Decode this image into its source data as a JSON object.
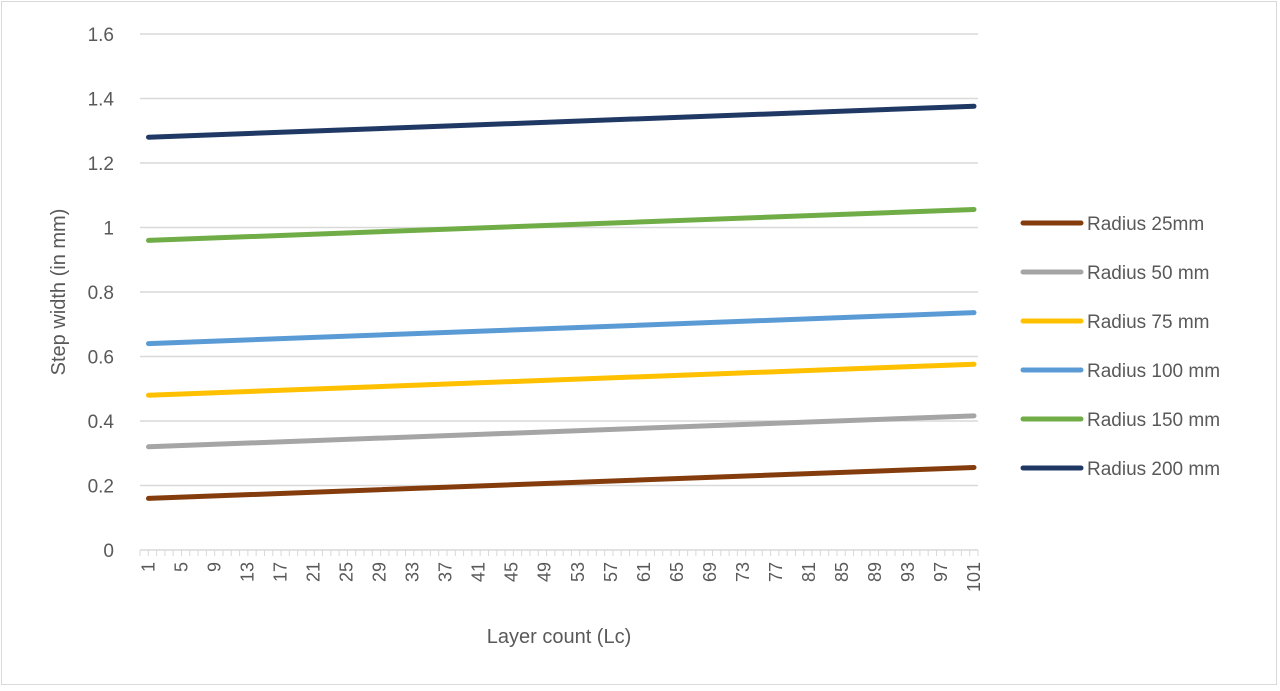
{
  "chart_data": {
    "type": "line",
    "title": "",
    "xlabel": "Layer count (Lc)",
    "ylabel": "Step width  (in mm)",
    "ylim": [
      0,
      1.6
    ],
    "yticks": [
      "0",
      "0.2",
      "0.4",
      "0.6",
      "0.8",
      "1",
      "1.2",
      "1.4",
      "1.6"
    ],
    "xlim": [
      1,
      101
    ],
    "xticks": [
      "1",
      "5",
      "9",
      "13",
      "17",
      "21",
      "25",
      "29",
      "33",
      "37",
      "41",
      "45",
      "49",
      "53",
      "57",
      "61",
      "65",
      "69",
      "73",
      "77",
      "81",
      "85",
      "89",
      "93",
      "97",
      "101"
    ],
    "grid": true,
    "legend_position": "right",
    "series": [
      {
        "name": "Radius 25mm",
        "color": "#843c0c",
        "start": 0.16,
        "end": 0.256,
        "x": [
          1,
          101
        ],
        "values": [
          0.16,
          0.256
        ]
      },
      {
        "name": "Radius 50 mm",
        "color": "#a5a5a5",
        "start": 0.32,
        "end": 0.416,
        "x": [
          1,
          101
        ],
        "values": [
          0.32,
          0.416
        ]
      },
      {
        "name": "Radius 75 mm",
        "color": "#ffc000",
        "start": 0.48,
        "end": 0.576,
        "x": [
          1,
          101
        ],
        "values": [
          0.48,
          0.576
        ]
      },
      {
        "name": "Radius 100 mm",
        "color": "#5b9bd5",
        "start": 0.64,
        "end": 0.736,
        "x": [
          1,
          101
        ],
        "values": [
          0.64,
          0.736
        ]
      },
      {
        "name": "Radius 150 mm",
        "color": "#70ad47",
        "start": 0.96,
        "end": 1.056,
        "x": [
          1,
          101
        ],
        "values": [
          0.96,
          1.056
        ]
      },
      {
        "name": "Radius 200 mm",
        "color": "#203864",
        "start": 1.28,
        "end": 1.376,
        "x": [
          1,
          101
        ],
        "values": [
          1.28,
          1.376
        ]
      }
    ]
  }
}
